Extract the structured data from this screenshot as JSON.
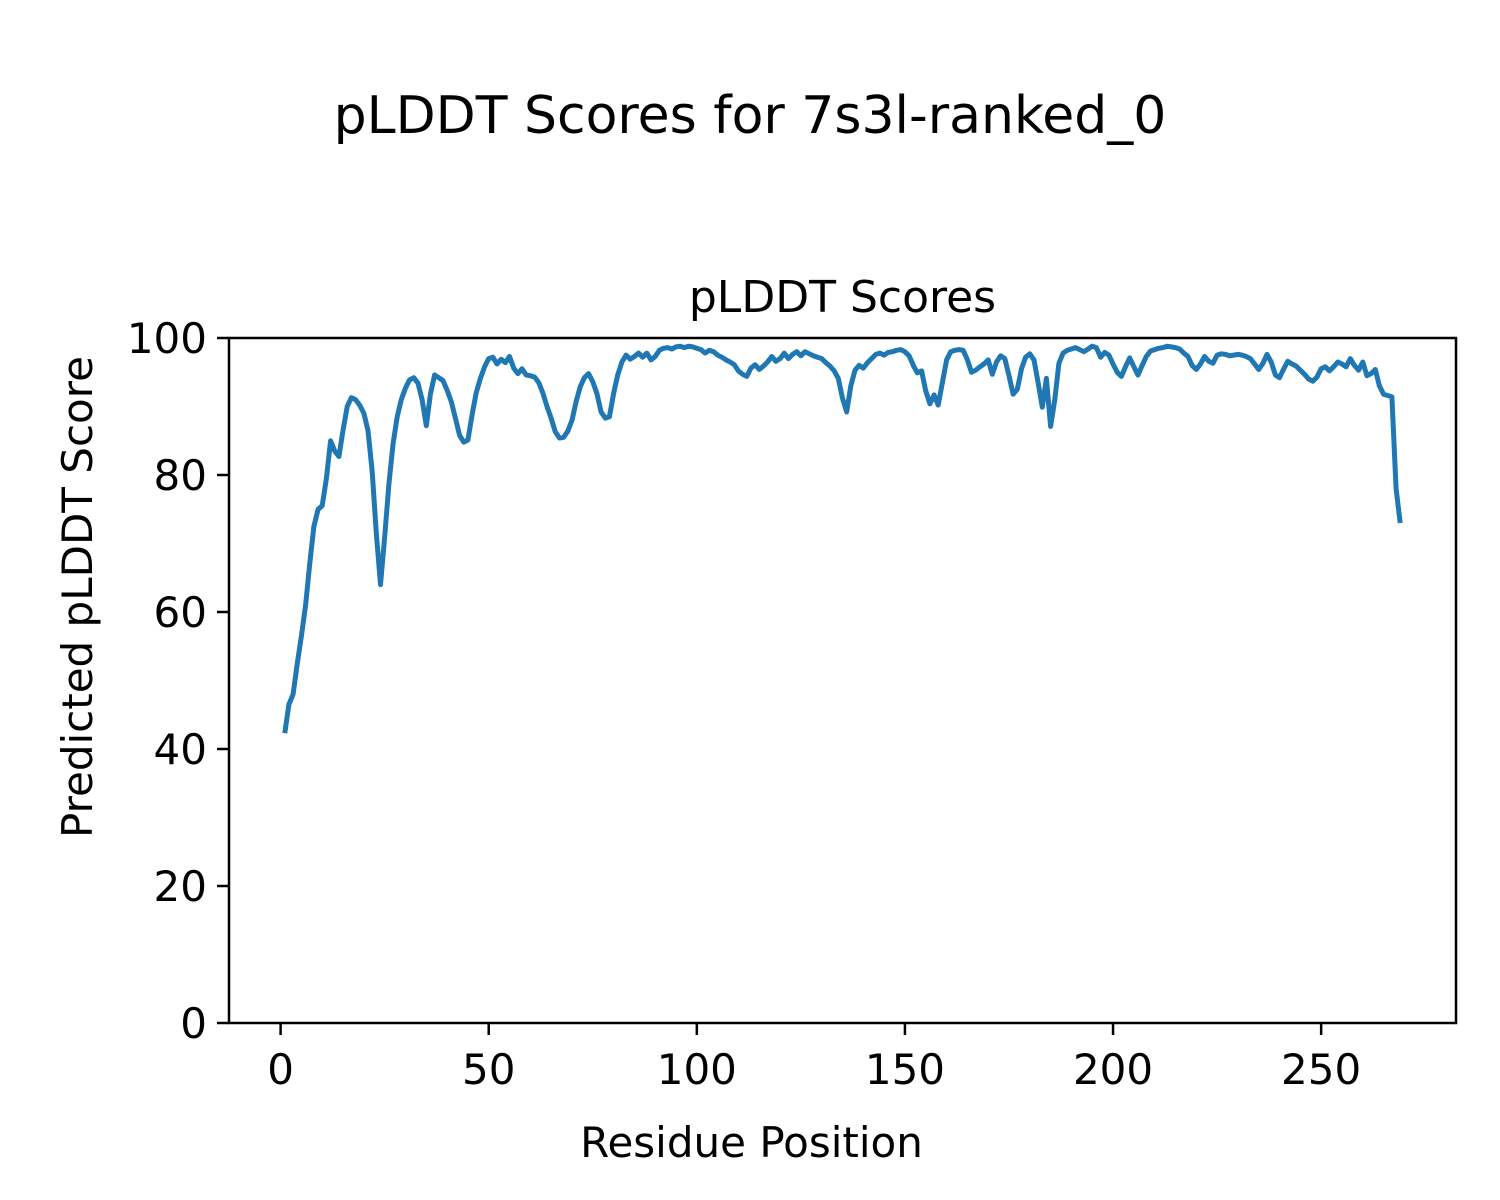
{
  "figure": {
    "suptitle": "pLDDT Scores for 7s3l-ranked_0",
    "background": "#ffffff",
    "text_color": "#000000"
  },
  "chart_data": {
    "type": "line",
    "title": "pLDDT Scores",
    "xlabel": "Residue Position",
    "ylabel": "Predicted pLDDT Score",
    "xlim": [
      -12.4,
      282.4
    ],
    "ylim": [
      0,
      100
    ],
    "xticks": [
      0,
      50,
      100,
      150,
      200,
      250
    ],
    "yticks": [
      0,
      20,
      40,
      60,
      80,
      100
    ],
    "grid": false,
    "legend_position": "none",
    "spine_color": "#000000",
    "series": [
      {
        "name": "pLDDT",
        "color": "#1f77b4",
        "line_width": 5,
        "x_start": 1,
        "x_step": 1,
        "values": [
          42.3,
          46.5,
          48.0,
          52.5,
          56.5,
          61.0,
          67.0,
          72.5,
          75.0,
          75.5,
          79.5,
          85.0,
          83.5,
          82.7,
          86.5,
          90.0,
          91.3,
          91.0,
          90.2,
          89.0,
          86.5,
          80.5,
          71.5,
          64.0,
          71.0,
          78.5,
          84.5,
          88.5,
          91.0,
          92.7,
          93.9,
          94.2,
          93.4,
          91.0,
          87.2,
          91.8,
          94.6,
          94.2,
          93.8,
          92.4,
          90.7,
          88.3,
          85.8,
          84.8,
          85.1,
          88.8,
          92.0,
          94.1,
          95.8,
          97.0,
          97.2,
          96.2,
          96.9,
          96.4,
          97.3,
          95.6,
          94.8,
          95.5,
          94.6,
          94.5,
          94.3,
          93.5,
          92.0,
          90.0,
          88.3,
          86.3,
          85.4,
          85.5,
          86.4,
          88.0,
          90.7,
          92.9,
          94.2,
          94.8,
          93.6,
          91.9,
          89.2,
          88.3,
          88.5,
          91.9,
          94.6,
          96.5,
          97.5,
          96.9,
          97.3,
          97.8,
          97.2,
          97.8,
          96.8,
          97.3,
          98.2,
          98.5,
          98.6,
          98.4,
          98.7,
          98.8,
          98.6,
          98.8,
          98.7,
          98.5,
          98.3,
          97.8,
          98.2,
          98.0,
          97.5,
          97.2,
          96.8,
          96.5,
          96.1,
          95.2,
          94.7,
          94.4,
          95.6,
          96.1,
          95.4,
          95.9,
          96.5,
          97.3,
          96.6,
          97.0,
          97.8,
          97.0,
          97.6,
          98.0,
          97.4,
          98.0,
          97.7,
          97.4,
          97.2,
          97.0,
          96.4,
          95.9,
          95.2,
          94.1,
          91.2,
          89.2,
          93.0,
          95.3,
          96.0,
          95.6,
          96.4,
          97.0,
          97.6,
          97.8,
          97.5,
          97.9,
          98.0,
          98.2,
          98.3,
          98.0,
          97.4,
          96.0,
          94.9,
          95.2,
          92.3,
          90.4,
          91.7,
          90.2,
          93.5,
          96.8,
          98.0,
          98.2,
          98.3,
          98.2,
          96.8,
          95.0,
          95.3,
          95.8,
          96.2,
          96.8,
          94.7,
          96.5,
          97.4,
          97.0,
          94.5,
          91.8,
          92.5,
          95.5,
          97.2,
          97.7,
          96.8,
          93.5,
          89.9,
          94.1,
          87.1,
          91.0,
          96.3,
          97.8,
          98.2,
          98.4,
          98.6,
          98.3,
          98.0,
          98.4,
          98.8,
          98.6,
          97.2,
          97.9,
          97.5,
          96.2,
          95.0,
          94.4,
          95.8,
          97.1,
          95.8,
          94.6,
          96.0,
          97.3,
          98.1,
          98.3,
          98.5,
          98.6,
          98.8,
          98.7,
          98.6,
          98.4,
          97.8,
          97.3,
          96.0,
          95.4,
          96.2,
          97.3,
          96.6,
          96.3,
          97.5,
          97.7,
          97.6,
          97.4,
          97.5,
          97.6,
          97.5,
          97.3,
          97.0,
          96.2,
          95.4,
          96.3,
          97.6,
          96.5,
          94.6,
          94.2,
          95.5,
          96.6,
          96.2,
          95.9,
          95.3,
          94.7,
          94.0,
          93.7,
          94.3,
          95.5,
          95.8,
          95.2,
          95.8,
          96.5,
          96.2,
          95.8,
          97.0,
          96.0,
          95.3,
          96.5,
          94.5,
          94.8,
          95.4,
          93.0,
          91.8,
          91.6,
          91.4,
          78.0,
          73.0
        ]
      }
    ]
  }
}
